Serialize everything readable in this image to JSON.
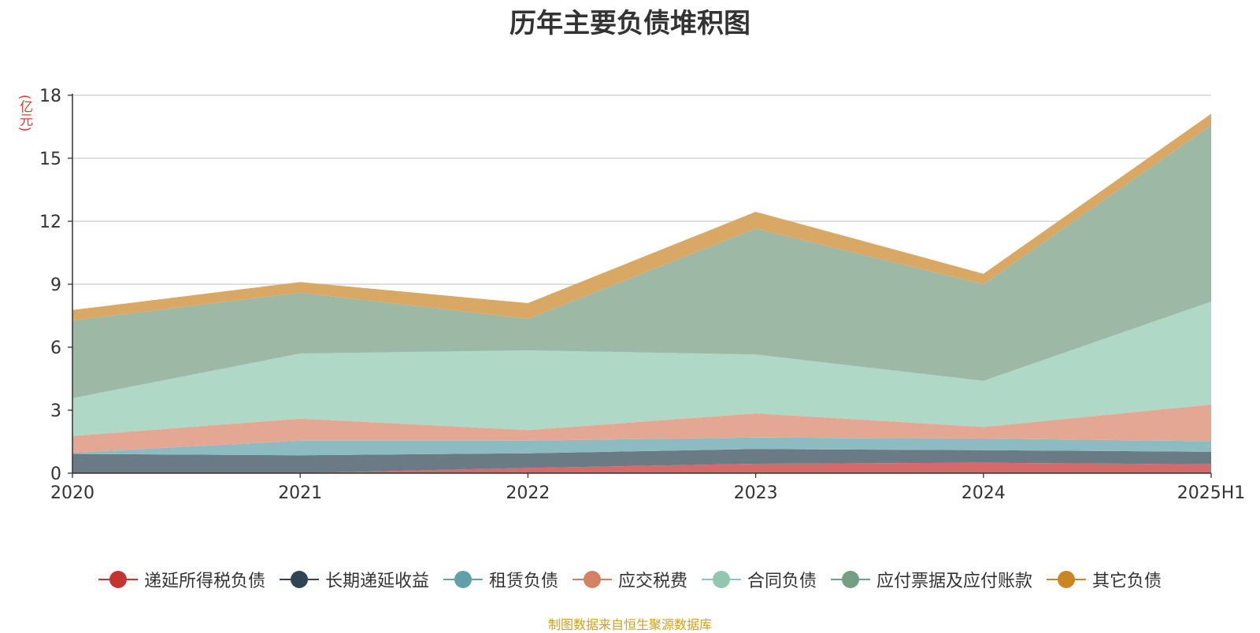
{
  "chart_data": {
    "type": "area",
    "stacked": true,
    "title": "历年主要负债堆积图",
    "unit": "(亿元)",
    "x": [
      "2020",
      "2021",
      "2022",
      "2023",
      "2024",
      "2025H1"
    ],
    "ylim": [
      0,
      18
    ],
    "yticks": [
      0,
      3,
      6,
      9,
      12,
      15,
      18
    ],
    "grid": true,
    "legend_position": "bottom",
    "series": [
      {
        "name": "递延所得税负债",
        "color": "#c23531",
        "fill": "#d46a6a",
        "values": [
          0.0,
          0.0,
          0.25,
          0.45,
          0.5,
          0.42
        ]
      },
      {
        "name": "长期递延收益",
        "color": "#2f4554",
        "fill": "#6b7b86",
        "values": [
          0.92,
          0.85,
          0.7,
          0.7,
          0.6,
          0.6
        ]
      },
      {
        "name": "租赁负债",
        "color": "#61a0a8",
        "fill": "#8cbcc2",
        "values": [
          0.05,
          0.7,
          0.6,
          0.55,
          0.55,
          0.5
        ]
      },
      {
        "name": "应交税费",
        "color": "#d48265",
        "fill": "#e3a794",
        "values": [
          0.8,
          1.05,
          0.5,
          1.15,
          0.55,
          1.75
        ]
      },
      {
        "name": "合同负债",
        "color": "#91c7ae",
        "fill": "#b0d8c6",
        "values": [
          1.8,
          3.1,
          3.8,
          2.8,
          2.2,
          4.9
        ]
      },
      {
        "name": "应付票据及应付账款",
        "color": "#749f83",
        "fill": "#9db9a6",
        "values": [
          3.7,
          2.9,
          1.5,
          6.0,
          4.6,
          8.4
        ]
      },
      {
        "name": "其它负债",
        "color": "#ca8622",
        "fill": "#d9a864",
        "values": [
          0.5,
          0.5,
          0.75,
          0.8,
          0.5,
          0.55
        ]
      }
    ]
  },
  "source_note": "制图数据来自恒生聚源数据库"
}
